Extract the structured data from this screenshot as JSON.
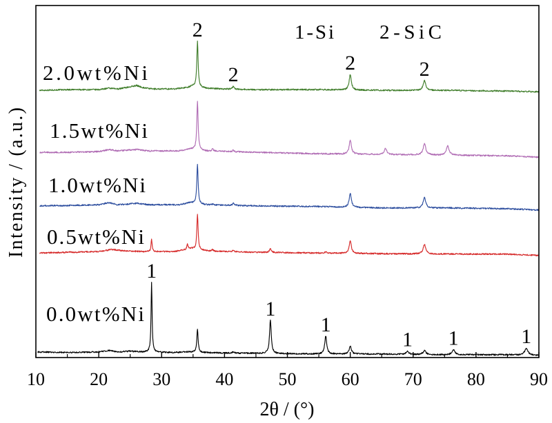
{
  "chart_data": {
    "type": "line",
    "xlabel": "2θ / (°)",
    "ylabel": "Intensity / (a.u.)",
    "xlim": [
      10,
      90
    ],
    "ylim": [
      0,
      100
    ],
    "xticks": [
      10,
      20,
      30,
      40,
      50,
      60,
      70,
      80,
      90
    ],
    "grid": false,
    "legend": [
      "1-Si",
      "2-SiC"
    ],
    "legend_placement": "top",
    "series": [
      {
        "name": "2.0wt%Ni",
        "color": "#3f7d2a",
        "background": [
          [
            10.6,
            75.9
          ],
          [
            15,
            76.1
          ],
          [
            20,
            76.1
          ],
          [
            21.5,
            76.5
          ],
          [
            23,
            76.3
          ],
          [
            25,
            76.9
          ],
          [
            26,
            77.3
          ],
          [
            27,
            76.7
          ],
          [
            28.5,
            76.3
          ],
          [
            32,
            76.3
          ],
          [
            34,
            76.7
          ],
          [
            35,
            77.1
          ],
          [
            37,
            76.5
          ],
          [
            40,
            76.3
          ],
          [
            45,
            76.1
          ],
          [
            55,
            76.1
          ],
          [
            65,
            75.9
          ],
          [
            75,
            75.9
          ],
          [
            85,
            75.7
          ],
          [
            90,
            75.5
          ]
        ],
        "peaks": [
          [
            35.7,
            89.8
          ],
          [
            41.4,
            77.1
          ],
          [
            60.0,
            80.4
          ],
          [
            71.8,
            78.7
          ]
        ]
      },
      {
        "name": "1.5wt%Ni",
        "color": "#b06cb4",
        "background": [
          [
            10.6,
            58.3
          ],
          [
            15,
            58.3
          ],
          [
            20,
            58.5
          ],
          [
            21.7,
            59.1
          ],
          [
            23,
            58.7
          ],
          [
            26,
            59.1
          ],
          [
            28,
            58.7
          ],
          [
            33,
            58.7
          ],
          [
            34.5,
            59.3
          ],
          [
            37,
            58.7
          ],
          [
            45,
            58.3
          ],
          [
            55,
            57.9
          ],
          [
            65,
            57.7
          ],
          [
            75,
            57.5
          ],
          [
            85,
            57.3
          ],
          [
            90,
            56.9
          ]
        ],
        "peaks": [
          [
            35.7,
            72.8
          ],
          [
            38.1,
            59.3
          ],
          [
            41.4,
            58.9
          ],
          [
            60.0,
            61.8
          ],
          [
            65.6,
            59.5
          ],
          [
            71.8,
            60.7
          ],
          [
            75.5,
            60.1
          ]
        ]
      },
      {
        "name": "1.0wt%Ni",
        "color": "#2c4d9e",
        "background": [
          [
            10.6,
            43.1
          ],
          [
            15,
            43.2
          ],
          [
            20,
            43.4
          ],
          [
            21.7,
            44.0
          ],
          [
            23,
            43.4
          ],
          [
            26,
            43.8
          ],
          [
            28,
            43.4
          ],
          [
            33,
            43.4
          ],
          [
            34.5,
            44.0
          ],
          [
            37,
            43.4
          ],
          [
            45,
            43.1
          ],
          [
            55,
            42.9
          ],
          [
            65,
            42.5
          ],
          [
            75,
            42.5
          ],
          [
            85,
            42.3
          ],
          [
            90,
            41.9
          ]
        ],
        "peaks": [
          [
            35.7,
            55.0
          ],
          [
            38.1,
            43.6
          ],
          [
            41.4,
            43.8
          ],
          [
            60.0,
            46.6
          ],
          [
            71.8,
            45.4
          ]
        ]
      },
      {
        "name": "0.5wt%Ni",
        "color": "#d62a2a",
        "background": [
          [
            10.6,
            29.7
          ],
          [
            15,
            29.9
          ],
          [
            20,
            30.1
          ],
          [
            22,
            30.7
          ],
          [
            24,
            30.3
          ],
          [
            27,
            30.1
          ],
          [
            32,
            30.1
          ],
          [
            34.8,
            30.9
          ],
          [
            37,
            30.3
          ],
          [
            45,
            29.9
          ],
          [
            55,
            29.7
          ],
          [
            65,
            29.5
          ],
          [
            75,
            29.4
          ],
          [
            85,
            29.4
          ],
          [
            90,
            29.0
          ]
        ],
        "peaks": [
          [
            28.4,
            33.7
          ],
          [
            34.1,
            32.3
          ],
          [
            35.7,
            40.5
          ],
          [
            38.1,
            30.7
          ],
          [
            41.4,
            30.5
          ],
          [
            47.3,
            30.9
          ],
          [
            56.1,
            30.0
          ],
          [
            60.0,
            33.1
          ],
          [
            71.8,
            32.1
          ]
        ]
      },
      {
        "name": "0.0wt%Ni",
        "color": "#000000",
        "background": [
          [
            10.3,
            1.6
          ],
          [
            15,
            1.4
          ],
          [
            20,
            1.6
          ],
          [
            21.7,
            2.0
          ],
          [
            23,
            1.6
          ],
          [
            25,
            1.8
          ],
          [
            27,
            1.6
          ],
          [
            32,
            1.4
          ],
          [
            34,
            1.6
          ],
          [
            37,
            1.4
          ],
          [
            45,
            1.2
          ],
          [
            55,
            1.0
          ],
          [
            65,
            1.0
          ],
          [
            75,
            0.8
          ],
          [
            85,
            0.8
          ],
          [
            90,
            0.6
          ]
        ],
        "peaks": [
          [
            28.4,
            21.3
          ],
          [
            35.7,
            8.0
          ],
          [
            41.4,
            1.7
          ],
          [
            47.3,
            10.6
          ],
          [
            56.1,
            6.1
          ],
          [
            60.0,
            3.3
          ],
          [
            69.1,
            1.8
          ],
          [
            71.8,
            2.0
          ],
          [
            76.4,
            2.2
          ],
          [
            88.0,
            2.7
          ]
        ]
      }
    ],
    "annotations": [
      {
        "text": "2",
        "series": "2.0wt%Ni",
        "x": 35.7
      },
      {
        "text": "2",
        "series": "2.0wt%Ni",
        "x": 41.4
      },
      {
        "text": "2",
        "series": "2.0wt%Ni",
        "x": 60.0
      },
      {
        "text": "2",
        "series": "2.0wt%Ni",
        "x": 71.8
      },
      {
        "text": "1",
        "series": "0.0wt%Ni",
        "x": 28.4
      },
      {
        "text": "1",
        "series": "0.0wt%Ni",
        "x": 47.3
      },
      {
        "text": "1",
        "series": "0.0wt%Ni",
        "x": 56.1
      },
      {
        "text": "1",
        "series": "0.0wt%Ni",
        "x": 69.1
      },
      {
        "text": "1",
        "series": "0.0wt%Ni",
        "x": 76.4
      },
      {
        "text": "1",
        "series": "0.0wt%Ni",
        "x": 88.0
      }
    ]
  }
}
